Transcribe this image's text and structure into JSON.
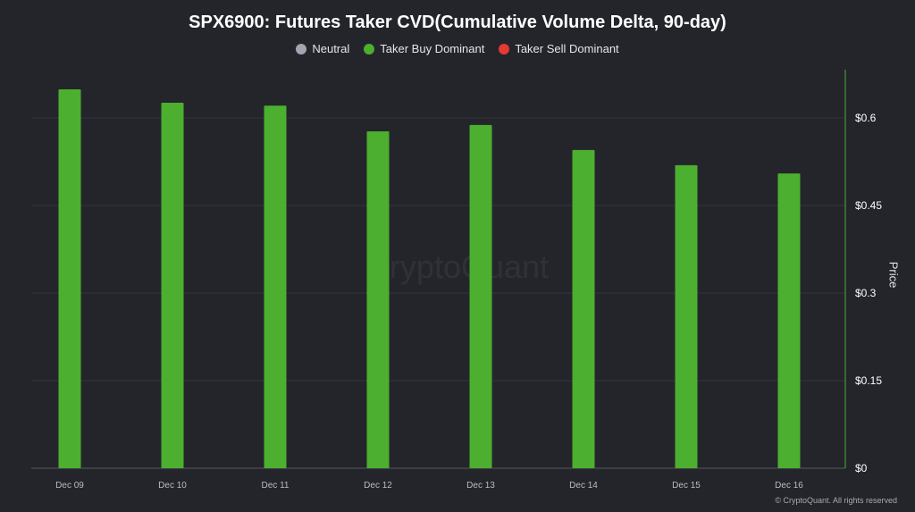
{
  "chart_data": {
    "type": "bar",
    "title": "SPX6900: Futures Taker CVD(Cumulative Volume Delta, 90-day)",
    "legend": [
      {
        "name": "Neutral",
        "color": "#a4a4b0"
      },
      {
        "name": "Taker Buy Dominant",
        "color": "#4caf2f"
      },
      {
        "name": "Taker Sell Dominant",
        "color": "#e53935"
      }
    ],
    "legend_placement": "top",
    "categories": [
      "Dec 09",
      "Dec 10",
      "Dec 11",
      "Dec 12",
      "Dec 13",
      "Dec 14",
      "Dec 15",
      "Dec 16"
    ],
    "values": [
      0.649,
      0.626,
      0.621,
      0.577,
      0.588,
      0.545,
      0.519,
      0.505
    ],
    "bar_color": "#4caf2f",
    "ylabel": "Price",
    "y_axis_position": "right",
    "ylim": [
      0,
      0.68
    ],
    "yticks": [
      0,
      0.15,
      0.3,
      0.45,
      0.6
    ],
    "ytick_labels": [
      "$0",
      "$0.15",
      "$0.3",
      "$0.45",
      "$0.6"
    ],
    "grid": true
  },
  "watermark": "CryptoQuant",
  "copyright": "© CryptoQuant. All rights reserved"
}
